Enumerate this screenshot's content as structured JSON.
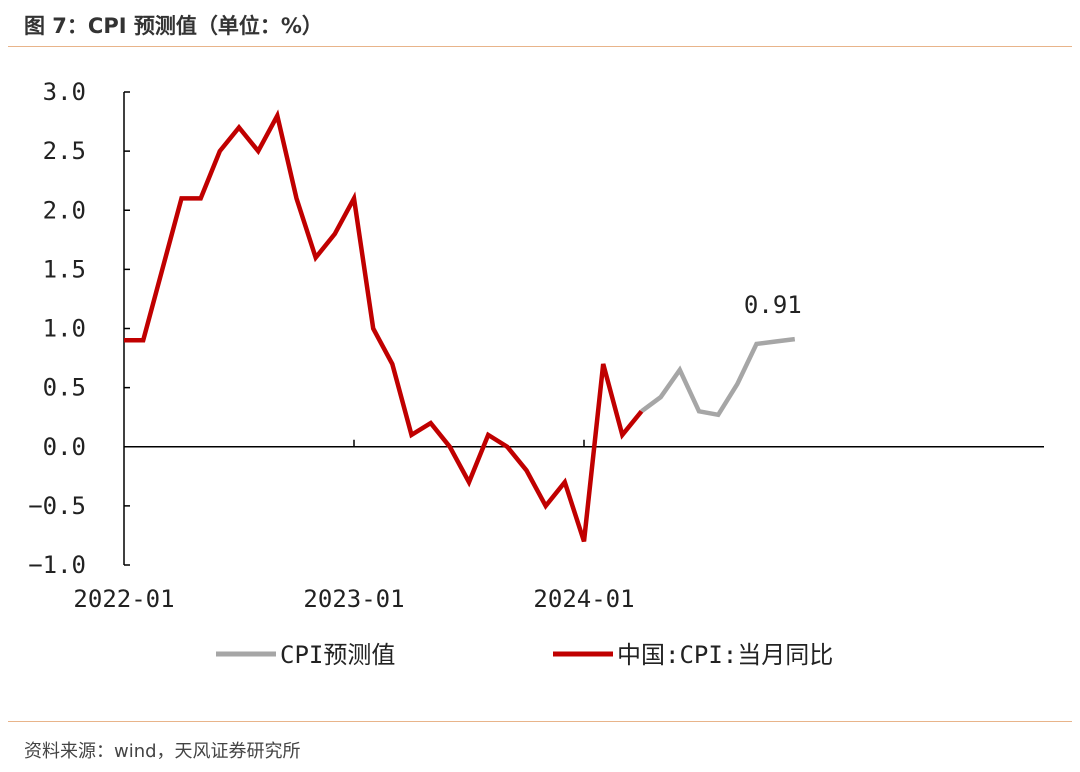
{
  "header": {
    "title": "图 7：CPI 预测值（单位：%）"
  },
  "footer": {
    "source": "资料来源：wind，天风证券研究所"
  },
  "chart_data": {
    "type": "line",
    "title": "图 7：CPI 预测值（单位：%）",
    "xlabel": "",
    "ylabel": "",
    "ylim": [
      -1.0,
      3.0
    ],
    "yticks": [
      -1.0,
      -0.5,
      0.0,
      0.5,
      1.0,
      1.5,
      2.0,
      2.5,
      3.0
    ],
    "ytick_labels": [
      "−1.0",
      "−0.5",
      "0.0",
      "0.5",
      "1.0",
      "1.5",
      "2.0",
      "2.5",
      "3.0"
    ],
    "xtick_labels": [
      "2022-01",
      "2023-01",
      "2024-01"
    ],
    "xlim": [
      "2022-01",
      "2025-12"
    ],
    "legend_position": "bottom",
    "grid": false,
    "series": [
      {
        "name": "CPI预测值",
        "color": "#a6a6a6",
        "x": [
          "2024-04",
          "2024-05",
          "2024-06",
          "2024-07",
          "2024-08",
          "2024-09",
          "2024-10",
          "2024-11",
          "2024-12"
        ],
        "values": [
          0.3,
          0.42,
          0.65,
          0.3,
          0.27,
          0.53,
          0.87,
          0.89,
          0.91
        ]
      },
      {
        "name": "中国:CPI:当月同比",
        "color": "#c00000",
        "x": [
          "2022-01",
          "2022-02",
          "2022-03",
          "2022-04",
          "2022-05",
          "2022-06",
          "2022-07",
          "2022-08",
          "2022-09",
          "2022-10",
          "2022-11",
          "2022-12",
          "2023-01",
          "2023-02",
          "2023-03",
          "2023-04",
          "2023-05",
          "2023-06",
          "2023-07",
          "2023-08",
          "2023-09",
          "2023-10",
          "2023-11",
          "2023-12",
          "2024-01",
          "2024-02",
          "2024-03",
          "2024-04"
        ],
        "values": [
          0.9,
          0.9,
          1.5,
          2.1,
          2.1,
          2.5,
          2.7,
          2.5,
          2.8,
          2.1,
          1.6,
          1.8,
          2.1,
          1.0,
          0.7,
          0.1,
          0.2,
          0.0,
          -0.3,
          0.1,
          0.0,
          -0.2,
          -0.5,
          -0.3,
          -0.8,
          0.7,
          0.1,
          0.3
        ]
      }
    ],
    "annotations": [
      {
        "x": "2024-12",
        "y": 0.91,
        "text": "0.91"
      }
    ]
  }
}
